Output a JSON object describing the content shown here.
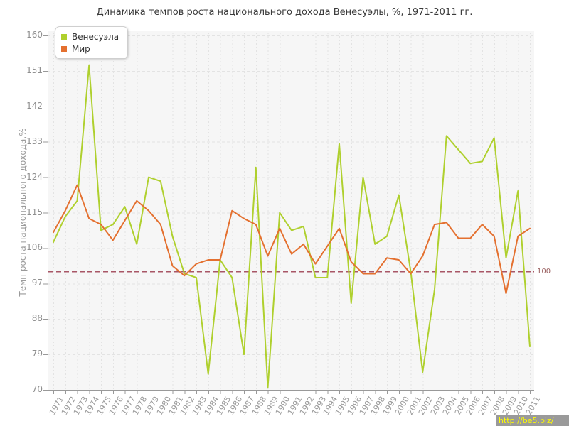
{
  "header": {
    "title": "Динамика темпов роста национального дохода Венесуэлы, %, 1971-2011 гг."
  },
  "y_axis": {
    "label": "Темп роста национального дохода,%",
    "ticks": [
      160,
      151,
      142,
      133,
      124,
      115,
      106,
      97,
      88,
      79,
      70
    ]
  },
  "x_axis": {
    "years": [
      1971,
      1972,
      1973,
      1974,
      1975,
      1976,
      1977,
      1978,
      1979,
      1980,
      1981,
      1982,
      1983,
      1984,
      1985,
      1986,
      1987,
      1988,
      1989,
      1990,
      1991,
      1992,
      1993,
      1994,
      1995,
      1996,
      1997,
      1998,
      1999,
      2000,
      2001,
      2002,
      2003,
      2004,
      2005,
      2006,
      2007,
      2008,
      2009,
      2010,
      2011
    ]
  },
  "legend": {
    "items": [
      {
        "label": "Венесуэла",
        "color": "#afd02e"
      },
      {
        "label": "Мир",
        "color": "#e4702f"
      }
    ]
  },
  "threshold": {
    "value": 100,
    "label": "100",
    "line_color": "#a85666"
  },
  "watermark": {
    "text": "http://be5.biz/"
  },
  "colors": {
    "plot_background": "#f6f6f6",
    "grid": "#e3e3e3",
    "axis": "#999999",
    "tick_text": "#9a9a9a"
  },
  "chart_data": {
    "type": "line",
    "title": "Динамика темпов роста национального дохода Венесуэлы, %, 1971-2011 гг.",
    "xlabel": "",
    "ylabel": "Темп роста национального дохода,%",
    "x": [
      1971,
      1972,
      1973,
      1974,
      1975,
      1976,
      1977,
      1978,
      1979,
      1980,
      1981,
      1982,
      1983,
      1984,
      1985,
      1986,
      1987,
      1988,
      1989,
      1990,
      1991,
      1992,
      1993,
      1994,
      1995,
      1996,
      1997,
      1998,
      1999,
      2000,
      2001,
      2002,
      2003,
      2004,
      2005,
      2006,
      2007,
      2008,
      2009,
      2010,
      2011
    ],
    "series": [
      {
        "name": "Венесуэла",
        "color": "#afd02e",
        "values": [
          107.5,
          114,
          118,
          152.5,
          110.5,
          112,
          116.5,
          107,
          124,
          123,
          109,
          99.5,
          98.5,
          74,
          103,
          98.5,
          79,
          126.5,
          70.5,
          115,
          110.5,
          111.5,
          98.5,
          98.5,
          132.5,
          92,
          124,
          107,
          109,
          119.5,
          100,
          74.5,
          95.5,
          134.5,
          131,
          127.5,
          128,
          134,
          103.5,
          120.5,
          81
        ]
      },
      {
        "name": "Мир",
        "color": "#e4702f",
        "values": [
          110,
          115.5,
          122,
          113.5,
          112,
          108,
          113,
          118,
          115.5,
          112,
          101.5,
          99,
          102,
          103,
          103,
          115.5,
          113.5,
          112,
          104,
          111,
          104.5,
          107,
          102,
          106.5,
          111,
          102.5,
          99.5,
          99.5,
          103.5,
          103,
          99.5,
          104,
          112,
          112.5,
          108.5,
          108.5,
          112,
          109,
          94.5,
          109,
          111
        ]
      }
    ],
    "ylim": [
      70,
      160
    ],
    "ytick_step": 9,
    "baseline": 100,
    "grid": true,
    "legend_position": "top-left"
  }
}
